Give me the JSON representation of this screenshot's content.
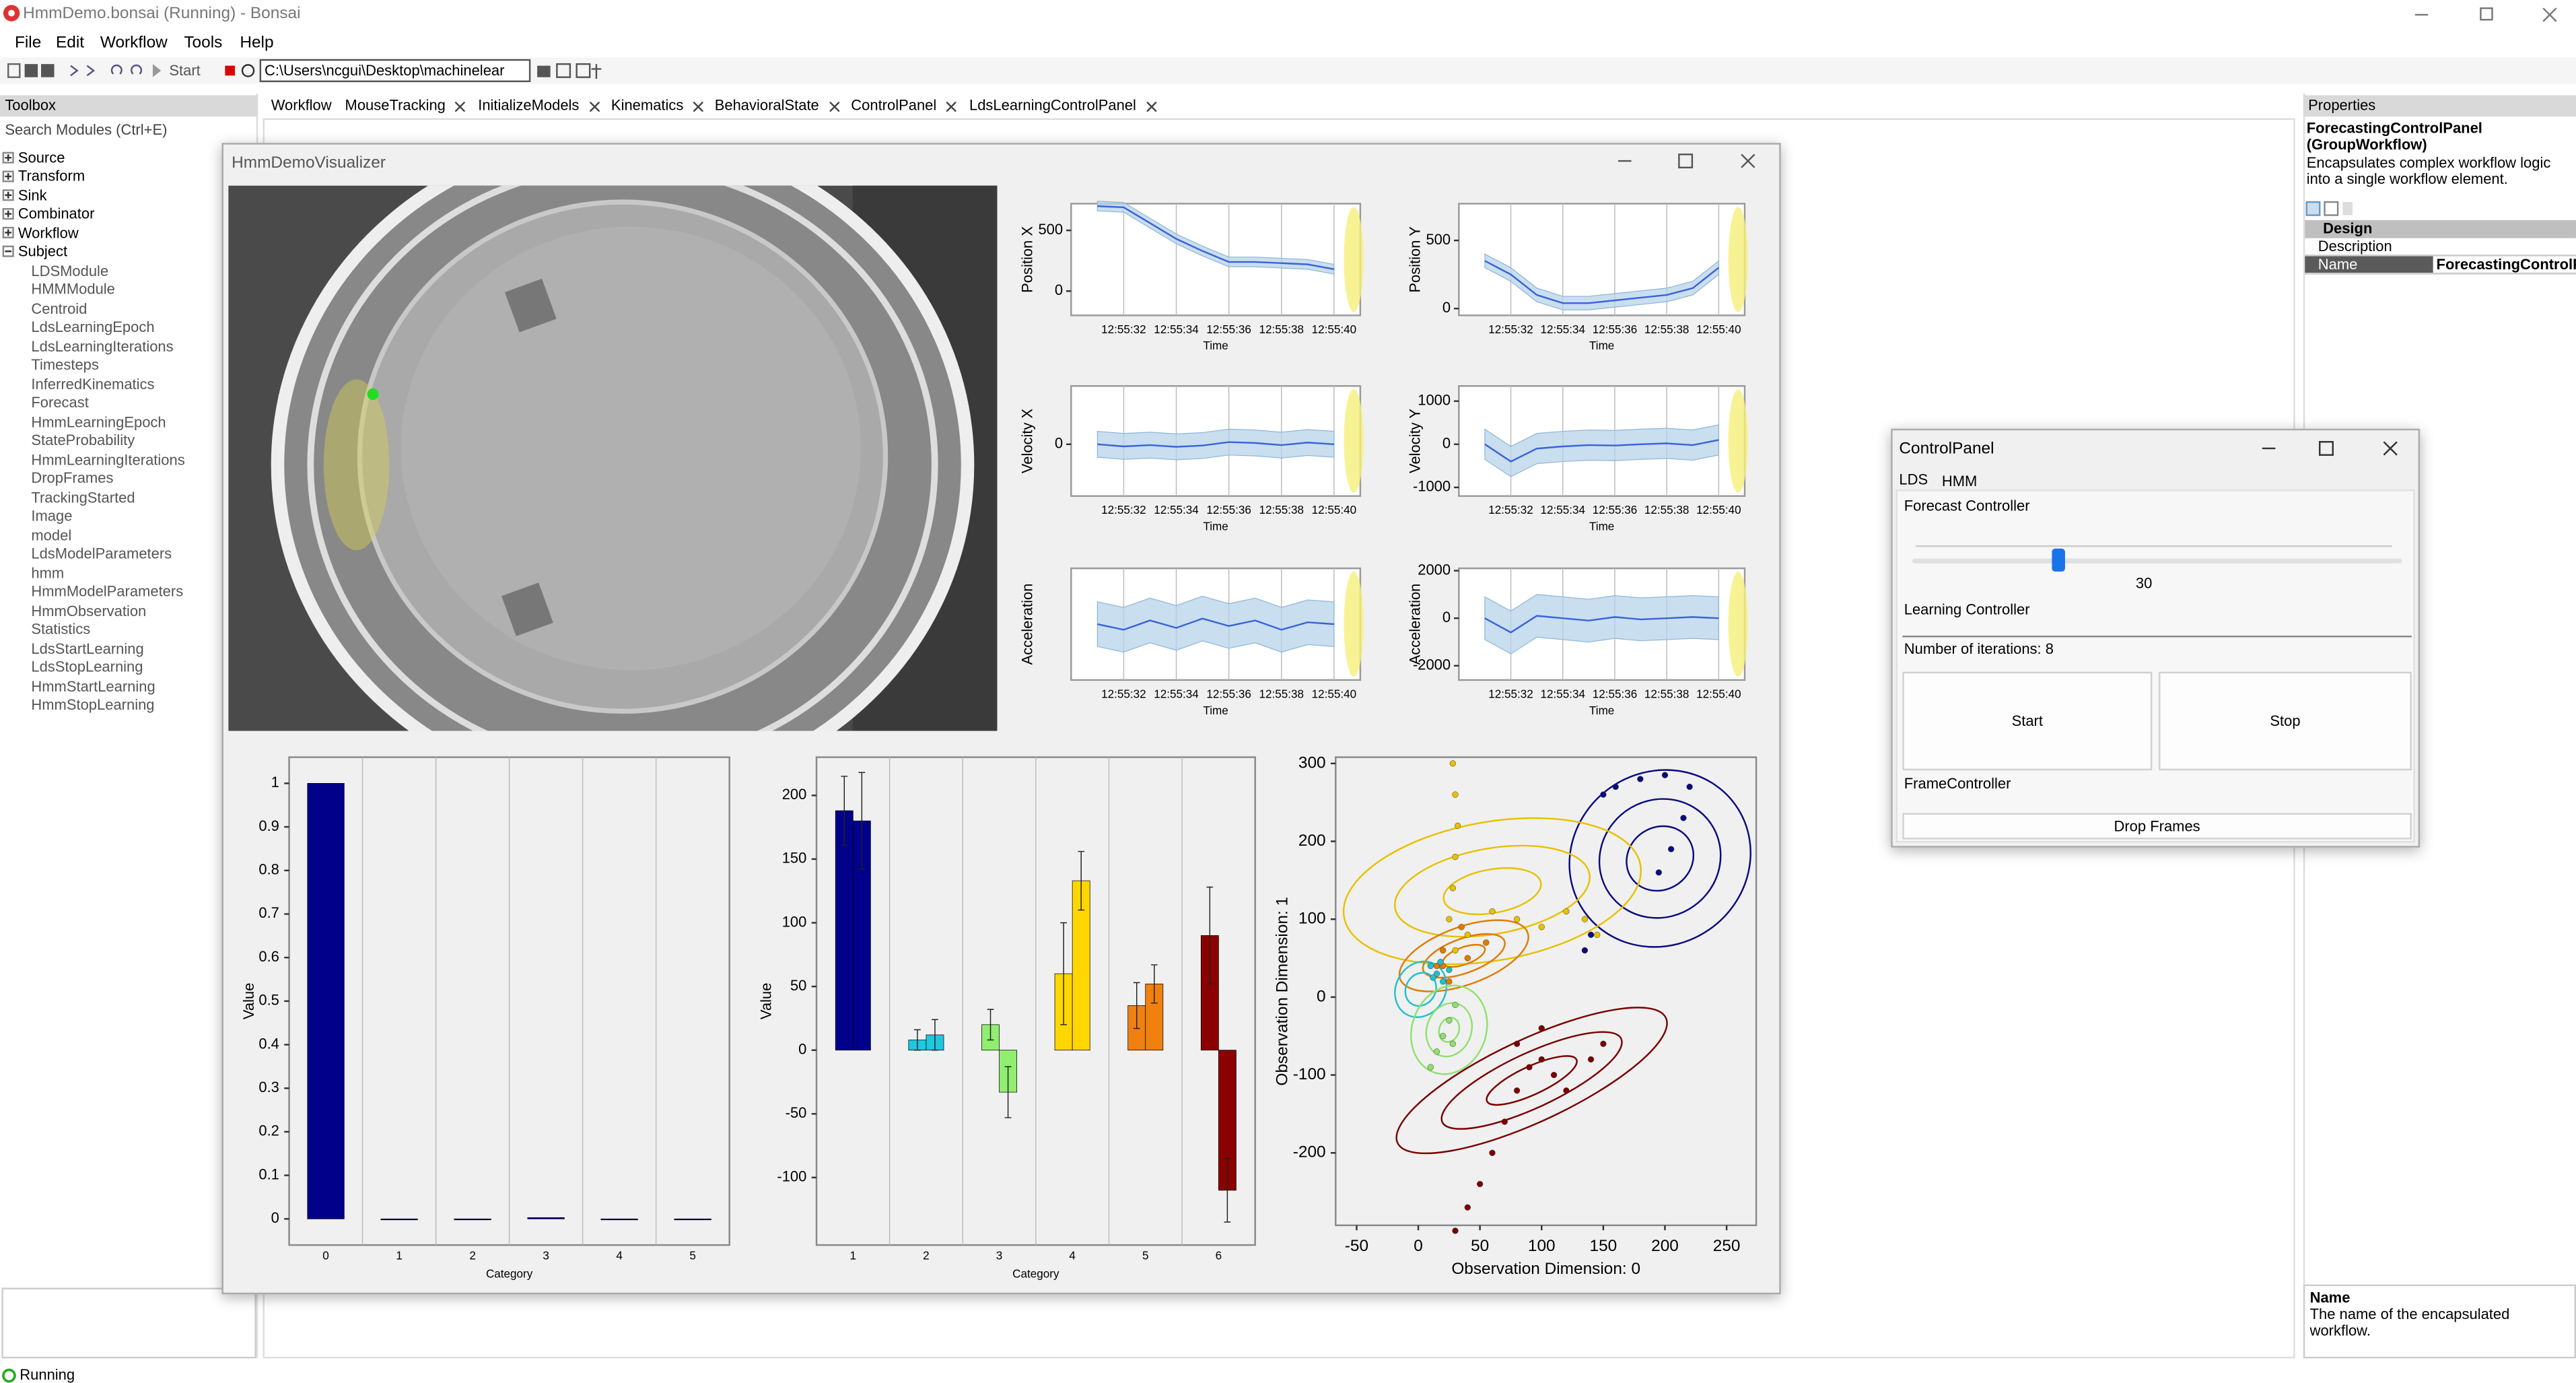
{
  "app": {
    "title": "HmmDemo.bonsai (Running) - Bonsai",
    "menu": [
      "File",
      "Edit",
      "Workflow",
      "Tools",
      "Help"
    ],
    "toolbar": {
      "start": "Start",
      "path": "C:\\Users\\ncgui\\Desktop\\machinelear"
    },
    "status": "Running"
  },
  "toolbox": {
    "title": "Toolbox",
    "search": "Search Modules (Ctrl+E)",
    "groups": [
      "Source",
      "Transform",
      "Sink",
      "Combinator",
      "Workflow",
      "Subject"
    ],
    "subjects": [
      "LDSModule",
      "HMMModule",
      "Centroid",
      "LdsLearningEpoch",
      "LdsLearningIterations",
      "Timesteps",
      "InferredKinematics",
      "Forecast",
      "HmmLearningEpoch",
      "StateProbability",
      "HmmLearningIterations",
      "DropFrames",
      "TrackingStarted",
      "Image",
      "model",
      "LdsModelParameters",
      "hmm",
      "HmmModelParameters",
      "HmmObservation",
      "Statistics",
      "LdsStartLearning",
      "LdsStopLearning",
      "HmmStartLearning",
      "HmmStopLearning"
    ]
  },
  "tabs": [
    "Workflow",
    "MouseTracking",
    "InitializeModels",
    "Kinematics",
    "BehavioralState",
    "ControlPanel",
    "LdsLearningControlPanel"
  ],
  "properties": {
    "title": "Properties",
    "name": "ForecastingControlPanel (GroupWorkflow)",
    "description": "Encapsulates complex workflow logic into a single workflow element.",
    "section": "Design",
    "rows": [
      {
        "label": "Description"
      },
      {
        "label": "Name",
        "value": "ForecastingControlP"
      }
    ],
    "help": {
      "title": "Name",
      "text": "The name of the encapsulated workflow."
    }
  },
  "visualizer": {
    "title": "HmmDemoVisualizer"
  },
  "control_panel": {
    "title": "ControlPanel",
    "tabs": [
      "LDS",
      "HMM"
    ],
    "forecast": "Forecast Controller",
    "slider": 30,
    "learning": "Learning Controller",
    "iterations": "Number of iterations: 8",
    "start": "Start",
    "stop": "Stop",
    "frame": "FrameController",
    "drop": "Drop Frames"
  },
  "chart_data": [
    {
      "type": "line",
      "ylabel": "Position X",
      "xlabel": "Time",
      "x": [
        "12:55:31",
        "12:55:32",
        "12:55:33",
        "12:55:34",
        "12:55:35",
        "12:55:36",
        "12:55:37",
        "12:55:38",
        "12:55:39",
        "12:55:40"
      ],
      "xlim": [
        "12:55:30",
        "12:55:41"
      ],
      "xticks": [
        "12:55:32",
        "12:55:34",
        "12:55:36",
        "12:55:38",
        "12:55:40"
      ],
      "ylim": [
        -200,
        720
      ],
      "yticks": [
        0,
        500
      ],
      "grid": true,
      "series": [
        {
          "color": "#3a63d8",
          "band_color": "#b7d3ea",
          "values": [
            700,
            690,
            560,
            430,
            330,
            240,
            240,
            230,
            220,
            180
          ],
          "lower": [
            660,
            650,
            520,
            390,
            290,
            200,
            200,
            190,
            180,
            140
          ],
          "upper": [
            740,
            730,
            600,
            470,
            370,
            280,
            280,
            270,
            260,
            220
          ]
        }
      ]
    },
    {
      "type": "line",
      "ylabel": "Position Y",
      "xlabel": "Time",
      "x": [
        "12:55:31",
        "12:55:32",
        "12:55:33",
        "12:55:34",
        "12:55:35",
        "12:55:36",
        "12:55:37",
        "12:55:38",
        "12:55:39",
        "12:55:40"
      ],
      "xlim": [
        "12:55:30",
        "12:55:41"
      ],
      "xticks": [
        "12:55:32",
        "12:55:34",
        "12:55:36",
        "12:55:38",
        "12:55:40"
      ],
      "ylim": [
        -50,
        770
      ],
      "yticks": [
        0,
        500
      ],
      "grid": true,
      "series": [
        {
          "color": "#3a63d8",
          "band_color": "#b7d3ea",
          "values": [
            350,
            250,
            100,
            40,
            40,
            60,
            80,
            100,
            150,
            300
          ],
          "lower": [
            300,
            200,
            50,
            -10,
            -10,
            10,
            30,
            50,
            100,
            250
          ],
          "upper": [
            400,
            300,
            150,
            90,
            90,
            110,
            130,
            150,
            200,
            350
          ]
        }
      ]
    },
    {
      "type": "line",
      "ylabel": "Velocity X",
      "xlabel": "Time",
      "x": [
        "12:55:31",
        "12:55:32",
        "12:55:33",
        "12:55:34",
        "12:55:35",
        "12:55:36",
        "12:55:37",
        "12:55:38",
        "12:55:39",
        "12:55:40"
      ],
      "xlim": [
        "12:55:30",
        "12:55:41"
      ],
      "xticks": [
        "12:55:32",
        "12:55:34",
        "12:55:36",
        "12:55:38",
        "12:55:40"
      ],
      "ylim": [
        -1200,
        1350
      ],
      "yticks": [
        0
      ],
      "grid": true,
      "series": [
        {
          "color": "#3a63d8",
          "band_color": "#b7d3ea",
          "values": [
            0,
            -50,
            -20,
            -60,
            -30,
            50,
            30,
            -20,
            40,
            0
          ],
          "lower": [
            -300,
            -350,
            -320,
            -360,
            -330,
            -250,
            -270,
            -320,
            -260,
            -300
          ],
          "upper": [
            300,
            250,
            280,
            240,
            270,
            350,
            330,
            280,
            340,
            300
          ]
        }
      ]
    },
    {
      "type": "line",
      "ylabel": "Velocity Y",
      "xlabel": "Time",
      "x": [
        "12:55:31",
        "12:55:32",
        "12:55:33",
        "12:55:34",
        "12:55:35",
        "12:55:36",
        "12:55:37",
        "12:55:38",
        "12:55:39",
        "12:55:40"
      ],
      "xlim": [
        "12:55:30",
        "12:55:41"
      ],
      "xticks": [
        "12:55:32",
        "12:55:34",
        "12:55:36",
        "12:55:38",
        "12:55:40"
      ],
      "ylim": [
        -1200,
        1350
      ],
      "yticks": [
        -1000,
        0,
        1000
      ],
      "grid": true,
      "series": [
        {
          "color": "#3a63d8",
          "band_color": "#b7d3ea",
          "values": [
            0,
            -400,
            -100,
            -50,
            -20,
            -30,
            0,
            20,
            -20,
            100
          ],
          "lower": [
            -350,
            -750,
            -450,
            -400,
            -370,
            -380,
            -350,
            -330,
            -370,
            -250
          ],
          "upper": [
            350,
            -50,
            250,
            300,
            330,
            320,
            350,
            370,
            330,
            450
          ]
        }
      ]
    },
    {
      "type": "line",
      "ylabel": "Acceleration",
      "xlabel": "Time",
      "x": [
        "12:55:31",
        "12:55:32",
        "12:55:33",
        "12:55:34",
        "12:55:35",
        "12:55:36",
        "12:55:37",
        "12:55:38",
        "12:55:39",
        "12:55:40"
      ],
      "xlim": [
        "12:55:30",
        "12:55:41"
      ],
      "xticks": [
        "12:55:32",
        "12:55:34",
        "12:55:36",
        "12:55:38",
        "12:55:40"
      ],
      "ylim": [
        -3000,
        3000
      ],
      "grid": true,
      "series": [
        {
          "color": "#3a63d8",
          "band_color": "#b7d3ea",
          "values": [
            0,
            -300,
            200,
            -200,
            300,
            -100,
            200,
            -300,
            100,
            0
          ],
          "lower": [
            -1200,
            -1500,
            -1000,
            -1400,
            -900,
            -1300,
            -1000,
            -1500,
            -1100,
            -1200
          ],
          "upper": [
            1200,
            900,
            1400,
            1000,
            1500,
            1100,
            1400,
            900,
            1300,
            1200
          ]
        }
      ]
    },
    {
      "type": "line",
      "ylabel": "Acceleration",
      "xlabel": "Time",
      "x": [
        "12:55:31",
        "12:55:32",
        "12:55:33",
        "12:55:34",
        "12:55:35",
        "12:55:36",
        "12:55:37",
        "12:55:38",
        "12:55:39",
        "12:55:40"
      ],
      "xlim": [
        "12:55:30",
        "12:55:41"
      ],
      "xticks": [
        "12:55:32",
        "12:55:34",
        "12:55:36",
        "12:55:38",
        "12:55:40"
      ],
      "ylim": [
        -2600,
        2100
      ],
      "yticks": [
        -2000,
        0,
        2000
      ],
      "grid": true,
      "series": [
        {
          "color": "#3a63d8",
          "band_color": "#b7d3ea",
          "values": [
            0,
            -600,
            100,
            0,
            -100,
            50,
            -50,
            0,
            50,
            0
          ],
          "lower": [
            -900,
            -1500,
            -800,
            -900,
            -1000,
            -850,
            -950,
            -900,
            -850,
            -900
          ],
          "upper": [
            900,
            300,
            1000,
            900,
            800,
            950,
            850,
            900,
            950,
            900
          ]
        }
      ]
    },
    {
      "type": "bar",
      "xlabel": "Category",
      "ylabel": "Value",
      "categories": [
        "0",
        "1",
        "2",
        "3",
        "4",
        "5"
      ],
      "values": [
        1,
        0,
        0,
        0.003,
        0,
        0
      ],
      "color": "#00008b",
      "ylim": [
        -0.06,
        1.06
      ],
      "yticks": [
        0,
        0.1,
        0.2,
        0.3,
        0.4,
        0.5,
        0.6,
        0.7,
        0.8,
        0.9,
        1
      ]
    },
    {
      "type": "grouped_bar",
      "xlabel": "Category",
      "ylabel": "Value",
      "categories": [
        "1",
        "2",
        "3",
        "4",
        "5",
        "6"
      ],
      "colors": [
        "#00008b",
        "#1ec8e0",
        "#90ee70",
        "#ffd700",
        "#f08010",
        "#8b0000"
      ],
      "ylim": [
        -153,
        230
      ],
      "yticks": [
        -100,
        -50,
        0,
        50,
        100,
        150,
        200
      ],
      "series": [
        {
          "values": [
            188,
            8,
            20,
            60,
            35,
            90
          ],
          "errors": [
            27,
            8,
            12,
            40,
            18,
            38
          ]
        },
        {
          "values": [
            180,
            12,
            -33,
            133,
            52,
            -110
          ],
          "errors": [
            38,
            12,
            20,
            23,
            15,
            25
          ]
        }
      ]
    },
    {
      "type": "scatter",
      "xlabel": "Observation Dimension: 0",
      "ylabel": "Observation Dimension: 1",
      "xlim": [
        -67,
        274
      ],
      "ylim": [
        -293,
        308
      ],
      "xticks": [
        -50,
        0,
        50,
        100,
        150,
        200,
        250
      ],
      "yticks": [
        -200,
        -100,
        0,
        100,
        200,
        300
      ],
      "states": [
        {
          "color": "#0a0a80",
          "mean": [
            196,
            178
          ],
          "radii": [
            [
              75,
              111
            ],
            [
              50,
              75
            ],
            [
              28,
              40
            ]
          ],
          "angle": -35
        },
        {
          "color": "#e8c000",
          "mean": [
            60,
            136
          ],
          "radii": [
            [
              122,
              89
            ],
            [
              80,
              55
            ],
            [
              40,
              28
            ]
          ],
          "angle": -10
        },
        {
          "color": "#e07b00",
          "mean": [
            37,
            53
          ],
          "radii": [
            [
              55,
              37
            ],
            [
              35,
              22
            ],
            [
              18,
              11
            ]
          ],
          "angle": -20
        },
        {
          "color": "#20c0d0",
          "mean": [
            2,
            10
          ],
          "radii": [
            [
              20,
              37
            ],
            [
              12,
              22
            ]
          ],
          "angle": 30
        },
        {
          "color": "#90e070",
          "mean": [
            25,
            -42
          ],
          "radii": [
            [
              30,
              58
            ],
            [
              18,
              35
            ],
            [
              8,
              16
            ]
          ],
          "angle": 20
        },
        {
          "color": "#7a0000",
          "mean": [
            92,
            -107
          ],
          "radii": [
            [
              120,
              53
            ],
            [
              80,
              35
            ],
            [
              40,
              18
            ]
          ],
          "angle": -25
        }
      ],
      "series": [
        {
          "color": "#e8c000",
          "x": [
            28,
            30,
            32,
            30,
            28,
            25,
            30,
            40,
            60,
            80,
            100,
            120,
            135,
            145
          ],
          "y": [
            300,
            260,
            220,
            180,
            140,
            100,
            60,
            80,
            110,
            100,
            90,
            110,
            100,
            80
          ]
        },
        {
          "color": "#e07b00",
          "x": [
            20,
            15,
            25,
            40,
            55,
            35,
            20
          ],
          "y": [
            60,
            40,
            20,
            50,
            70,
            90,
            40
          ]
        },
        {
          "color": "#20c0d0",
          "x": [
            10,
            15,
            20,
            25,
            18,
            12
          ],
          "y": [
            40,
            30,
            20,
            35,
            45,
            25
          ]
        },
        {
          "color": "#90e070",
          "x": [
            10,
            15,
            20,
            25,
            30,
            28
          ],
          "y": [
            -90,
            -70,
            -50,
            -30,
            -10,
            -60
          ]
        },
        {
          "color": "#0a0a80",
          "x": [
            150,
            160,
            180,
            200,
            220,
            215,
            205,
            195,
            140,
            135
          ],
          "y": [
            260,
            270,
            280,
            285,
            270,
            230,
            190,
            160,
            80,
            60
          ]
        },
        {
          "color": "#7a0000",
          "x": [
            30,
            40,
            50,
            60,
            70,
            80,
            90,
            100,
            110,
            120,
            140,
            150,
            100,
            80
          ],
          "y": [
            -300,
            -270,
            -240,
            -200,
            -160,
            -120,
            -90,
            -80,
            -100,
            -120,
            -80,
            -60,
            -40,
            -60
          ]
        }
      ]
    }
  ]
}
